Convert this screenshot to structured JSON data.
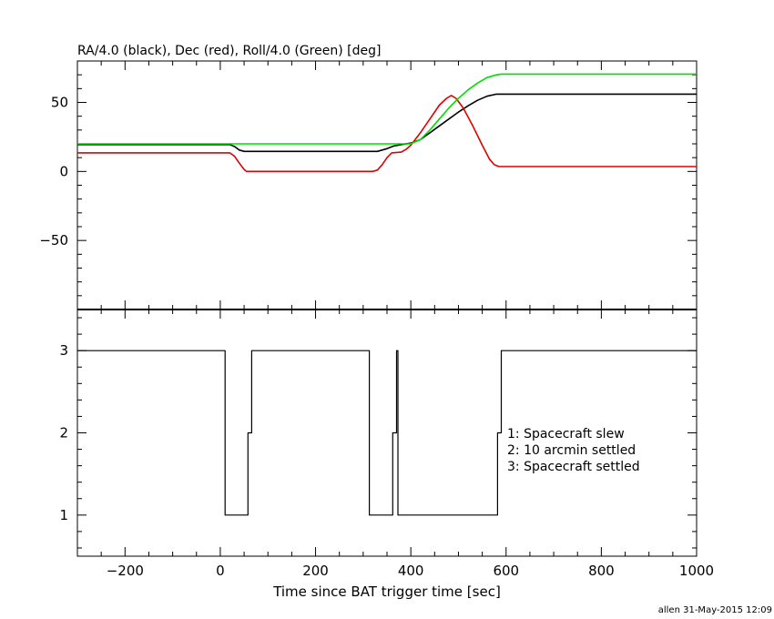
{
  "chart_data": [
    {
      "type": "line",
      "title": "RA/4.0 (black), Dec (red), Roll/4.0 (Green) [deg]",
      "xlim": [
        -300,
        1000
      ],
      "ylim": [
        -100,
        80
      ],
      "y_ticks": [
        -50,
        0,
        50
      ],
      "y_tick_labels": [
        "−50",
        "0",
        "50"
      ],
      "series": [
        {
          "color": "#000000",
          "points": [
            [
              -300,
              19.5
            ],
            [
              20,
              19.5
            ],
            [
              30,
              18
            ],
            [
              40,
              15.5
            ],
            [
              50,
              14.5
            ],
            [
              330,
              14.5
            ],
            [
              350,
              16.5
            ],
            [
              365,
              18.5
            ],
            [
              380,
              19.5
            ],
            [
              400,
              20.5
            ],
            [
              420,
              23
            ],
            [
              440,
              28
            ],
            [
              460,
              33
            ],
            [
              480,
              38
            ],
            [
              500,
              43
            ],
            [
              520,
              47.5
            ],
            [
              540,
              51.5
            ],
            [
              560,
              54.5
            ],
            [
              580,
              56
            ],
            [
              1000,
              56
            ]
          ]
        },
        {
          "color": "#e00000",
          "points": [
            [
              -300,
              13.5
            ],
            [
              20,
              13.5
            ],
            [
              30,
              11
            ],
            [
              40,
              6
            ],
            [
              50,
              1.5
            ],
            [
              55,
              0
            ],
            [
              320,
              0
            ],
            [
              330,
              1
            ],
            [
              340,
              5
            ],
            [
              350,
              10
            ],
            [
              360,
              13.5
            ],
            [
              380,
              14
            ],
            [
              390,
              16
            ],
            [
              400,
              19
            ],
            [
              420,
              28
            ],
            [
              440,
              38
            ],
            [
              460,
              48
            ],
            [
              475,
              53
            ],
            [
              485,
              55
            ],
            [
              495,
              53
            ],
            [
              510,
              46
            ],
            [
              530,
              33
            ],
            [
              550,
              19
            ],
            [
              565,
              9
            ],
            [
              575,
              5
            ],
            [
              585,
              3.5
            ],
            [
              1000,
              3.5
            ]
          ]
        },
        {
          "color": "#00dd00",
          "points": [
            [
              -300,
              20
            ],
            [
              400,
              20
            ],
            [
              420,
              23
            ],
            [
              440,
              30
            ],
            [
              460,
              38
            ],
            [
              480,
              46
            ],
            [
              500,
              53
            ],
            [
              520,
              59
            ],
            [
              540,
              64
            ],
            [
              560,
              68
            ],
            [
              580,
              70
            ],
            [
              590,
              70.5
            ],
            [
              1000,
              70.5
            ]
          ]
        }
      ]
    },
    {
      "type": "line",
      "xlabel": "Time since BAT trigger time [sec]",
      "xlim": [
        -300,
        1000
      ],
      "ylim": [
        0.5,
        3.5
      ],
      "x_ticks": [
        -200,
        0,
        200,
        400,
        600,
        800,
        1000
      ],
      "x_tick_labels": [
        "−200",
        "0",
        "200",
        "400",
        "600",
        "800",
        "1000"
      ],
      "y_ticks": [
        1,
        2,
        3
      ],
      "y_tick_labels": [
        "1",
        "2",
        "3"
      ],
      "series": [
        {
          "color": "#000000",
          "points": [
            [
              -300,
              3
            ],
            [
              10,
              3
            ],
            [
              10,
              1
            ],
            [
              58,
              1
            ],
            [
              58,
              2
            ],
            [
              66,
              2
            ],
            [
              66,
              3
            ],
            [
              313,
              3
            ],
            [
              313,
              1
            ],
            [
              362,
              1
            ],
            [
              362,
              2
            ],
            [
              370,
              2
            ],
            [
              370,
              3
            ],
            [
              373,
              3
            ],
            [
              373,
              1
            ],
            [
              582,
              1
            ],
            [
              582,
              2
            ],
            [
              590,
              2
            ],
            [
              590,
              3
            ],
            [
              1000,
              3
            ]
          ]
        }
      ],
      "legend": [
        "1: Spacecraft slew",
        "2: 10 arcmin settled",
        "3: Spacecraft settled"
      ],
      "legend_position": "right"
    }
  ],
  "footer": "allen 31-May-2015 12:09"
}
